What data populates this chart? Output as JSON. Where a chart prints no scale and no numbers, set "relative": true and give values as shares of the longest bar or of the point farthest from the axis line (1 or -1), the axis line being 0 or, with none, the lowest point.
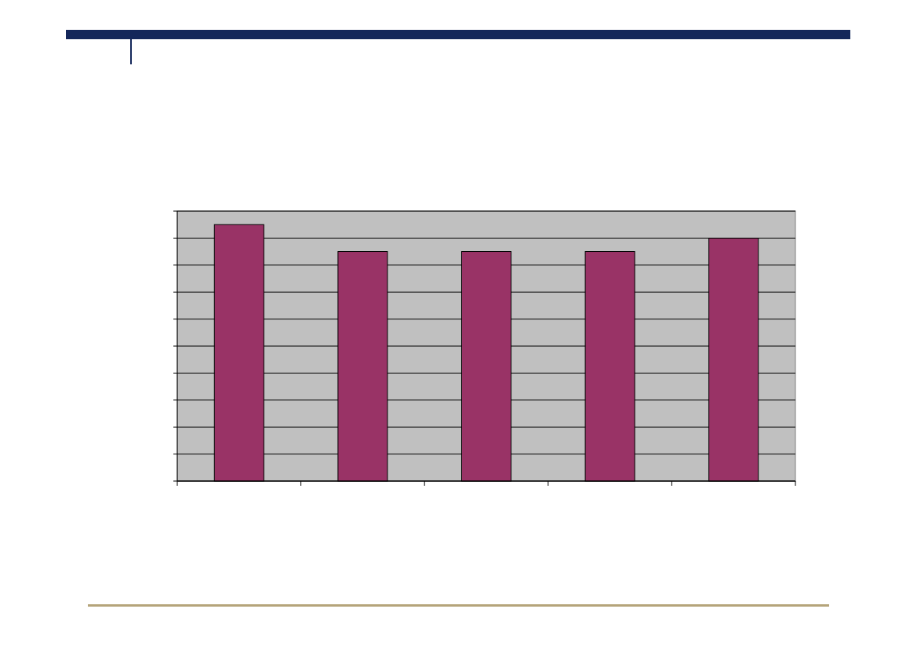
{
  "chart_data": {
    "type": "bar",
    "relative": true,
    "categories": [
      null,
      null,
      null,
      null,
      null
    ],
    "values": [
      1,
      0.895,
      0.895,
      0.895,
      0.947
    ],
    "color": "#993366",
    "grid": "y"
  }
}
